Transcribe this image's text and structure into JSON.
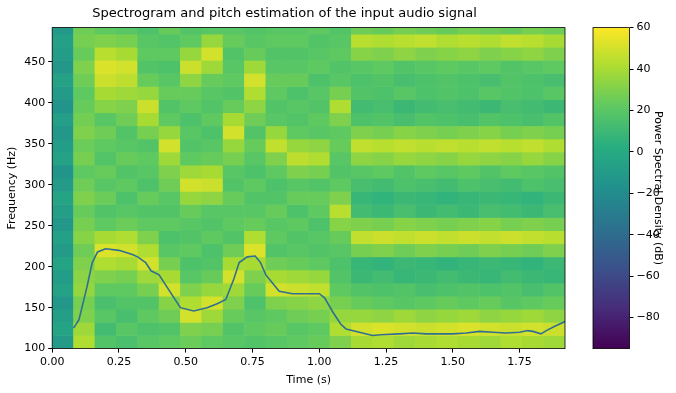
{
  "chart_data": {
    "type": "heatmap",
    "title": "Spectrogram and pitch estimation of the input audio signal",
    "x_label": "Time (s)",
    "y_label": "Frequency (Hz)",
    "grid": false,
    "xlim": [
      0,
      1.92
    ],
    "xticks": [
      {
        "value": 0,
        "label": "0.00"
      },
      {
        "value": 0.25,
        "label": "0.25"
      },
      {
        "value": 0.5,
        "label": "0.50"
      },
      {
        "value": 0.75,
        "label": "0.75"
      },
      {
        "value": 1,
        "label": "1.00"
      },
      {
        "value": 1.25,
        "label": "1.25"
      },
      {
        "value": 1.5,
        "label": "1.50"
      },
      {
        "value": 1.75,
        "label": "1.75"
      }
    ],
    "ylim": [
      100,
      492
    ],
    "yticks": [
      100,
      150,
      200,
      250,
      300,
      350,
      400,
      450
    ],
    "time_edges": [
      0,
      0.08,
      0.16,
      0.24,
      0.32,
      0.4,
      0.48,
      0.56,
      0.64,
      0.72,
      0.8,
      0.88,
      0.96,
      1.04,
      1.12,
      1.2,
      1.28,
      1.36,
      1.44,
      1.52,
      1.6,
      1.68,
      1.76,
      1.84,
      1.92
    ],
    "freq_edges": [
      100,
      116,
      132,
      148,
      164,
      180,
      196,
      212,
      228,
      244,
      260,
      276,
      292,
      308,
      324,
      340,
      356,
      372,
      388,
      404,
      420,
      436,
      452,
      468,
      484,
      500
    ],
    "cells": [
      [
        -10,
        -5,
        -8,
        -12,
        -6,
        -9,
        -4,
        -10,
        -7,
        -12,
        -8,
        -5,
        -10,
        -14,
        -6,
        -9,
        -12,
        -8,
        -15,
        -10,
        -6,
        -12,
        -9,
        -7,
        -11
      ],
      [
        42,
        38,
        30,
        28,
        35,
        33,
        30,
        26,
        32,
        28,
        24,
        30,
        26,
        22,
        28,
        25,
        30,
        27,
        24,
        22,
        26,
        30,
        24,
        28,
        26
      ],
      [
        18,
        12,
        20,
        15,
        22,
        30,
        42,
        52,
        40,
        22,
        18,
        25,
        20,
        24,
        18,
        22,
        26,
        20,
        32,
        40,
        48,
        52,
        44,
        30,
        22
      ],
      [
        15,
        20,
        14,
        18,
        22,
        28,
        40,
        50,
        42,
        25,
        20,
        16,
        22,
        18,
        24,
        20,
        18,
        26,
        30,
        38,
        45,
        50,
        40,
        28,
        20
      ],
      [
        20,
        16,
        22,
        18,
        28,
        38,
        50,
        42,
        30,
        22,
        18,
        24,
        16,
        20,
        22,
        18,
        28,
        40,
        48,
        36,
        24,
        18,
        22,
        20,
        16
      ],
      [
        22,
        18,
        26,
        32,
        50,
        40,
        28,
        20,
        16,
        22,
        18,
        20,
        26,
        30,
        38,
        50,
        36,
        22,
        18,
        24,
        20,
        16,
        22,
        18,
        24
      ],
      [
        25,
        30,
        50,
        42,
        30,
        20,
        16,
        22,
        18,
        20,
        24,
        36,
        50,
        38,
        22,
        18,
        20,
        16,
        22,
        24,
        34,
        48,
        36,
        22,
        18
      ],
      [
        22,
        28,
        38,
        50,
        36,
        24,
        18,
        16,
        22,
        18,
        20,
        34,
        48,
        40,
        24,
        20,
        16,
        22,
        18,
        20,
        24,
        38,
        50,
        36,
        20
      ],
      [
        20,
        18,
        24,
        30,
        38,
        50,
        40,
        26,
        18,
        22,
        20,
        24,
        18,
        20,
        28,
        36,
        50,
        40,
        24,
        18,
        22,
        20,
        18,
        24,
        20
      ],
      [
        18,
        22,
        20,
        16,
        24,
        30,
        40,
        52,
        42,
        24,
        20,
        18,
        22,
        16,
        20,
        24,
        18,
        26,
        34,
        42,
        50,
        38,
        24,
        20,
        18
      ],
      [
        20,
        24,
        22,
        30,
        50,
        40,
        26,
        18,
        22,
        20,
        24,
        18,
        16,
        22,
        30,
        46,
        36,
        20,
        18,
        22,
        24,
        20,
        18,
        22,
        20
      ],
      [
        22,
        20,
        26,
        32,
        48,
        38,
        24,
        20,
        18,
        22,
        16,
        24,
        20,
        30,
        45,
        36,
        22,
        18,
        20,
        16,
        24,
        20,
        18,
        22,
        20
      ],
      [
        24,
        22,
        28,
        34,
        46,
        36,
        22,
        18,
        20,
        16,
        22,
        24,
        18,
        28,
        42,
        34,
        20,
        22,
        18,
        20,
        16,
        22,
        20,
        18,
        22
      ],
      [
        30,
        42,
        36,
        28,
        22,
        18,
        16,
        20,
        24,
        32,
        44,
        30,
        22,
        18,
        20,
        24,
        22,
        30,
        42,
        28,
        20,
        18,
        22,
        20,
        18
      ],
      [
        40,
        50,
        36,
        24,
        18,
        10,
        8,
        28,
        46,
        30,
        12,
        8,
        14,
        20,
        34,
        46,
        30,
        16,
        12,
        18,
        16,
        20,
        32,
        44,
        26
      ],
      [
        42,
        52,
        34,
        22,
        16,
        12,
        6,
        30,
        48,
        28,
        10,
        6,
        12,
        22,
        32,
        44,
        28,
        18,
        14,
        16,
        18,
        22,
        30,
        42,
        24
      ],
      [
        38,
        50,
        38,
        20,
        18,
        8,
        10,
        26,
        46,
        32,
        14,
        10,
        16,
        18,
        36,
        46,
        32,
        14,
        10,
        20,
        14,
        18,
        34,
        44,
        28
      ],
      [
        40,
        48,
        34,
        22,
        14,
        10,
        8,
        30,
        48,
        30,
        10,
        8,
        14,
        22,
        34,
        44,
        30,
        18,
        12,
        16,
        16,
        20,
        30,
        46,
        26
      ],
      [
        42,
        50,
        36,
        24,
        16,
        12,
        6,
        28,
        46,
        28,
        12,
        6,
        12,
        20,
        32,
        46,
        28,
        16,
        14,
        18,
        18,
        22,
        32,
        42,
        24
      ],
      [
        40,
        52,
        38,
        22,
        18,
        10,
        8,
        26,
        48,
        30,
        10,
        8,
        16,
        22,
        36,
        44,
        30,
        14,
        12,
        16,
        16,
        20,
        34,
        44,
        28
      ],
      [
        38,
        50,
        34,
        24,
        16,
        8,
        10,
        30,
        46,
        32,
        14,
        10,
        14,
        18,
        34,
        46,
        32,
        18,
        10,
        20,
        14,
        22,
        30,
        42,
        26
      ],
      [
        42,
        48,
        36,
        20,
        18,
        12,
        8,
        28,
        48,
        28,
        12,
        8,
        12,
        22,
        32,
        44,
        28,
        16,
        14,
        18,
        18,
        18,
        32,
        46,
        24
      ],
      [
        40,
        50,
        38,
        22,
        14,
        10,
        6,
        26,
        46,
        30,
        10,
        6,
        16,
        20,
        36,
        46,
        30,
        14,
        12,
        16,
        16,
        20,
        34,
        44,
        28
      ],
      [
        38,
        48,
        34,
        24,
        18,
        8,
        10,
        30,
        44,
        28,
        14,
        10,
        14,
        18,
        32,
        42,
        28,
        18,
        10,
        20,
        14,
        22,
        30,
        40,
        26
      ]
    ],
    "colorbar": {
      "label": "Power Spectral Density (dB)",
      "lim": [
        -95,
        60
      ],
      "ticks": [
        {
          "value": -80,
          "label": "−80"
        },
        {
          "value": -60,
          "label": "−60"
        },
        {
          "value": -40,
          "label": "−40"
        },
        {
          "value": -20,
          "label": "−20"
        },
        0,
        20,
        40,
        60
      ]
    },
    "x": [
      0.08,
      0.1,
      0.13,
      0.15,
      0.17,
      0.2,
      0.25,
      0.3,
      0.32,
      0.35,
      0.37,
      0.4,
      0.43,
      0.45,
      0.48,
      0.53,
      0.58,
      0.62,
      0.65,
      0.68,
      0.7,
      0.73,
      0.76,
      0.78,
      0.8,
      0.83,
      0.85,
      0.9,
      0.95,
      1.0,
      1.02,
      1.05,
      1.08,
      1.1,
      1.15,
      1.2,
      1.23,
      1.3,
      1.35,
      1.4,
      1.5,
      1.55,
      1.6,
      1.65,
      1.7,
      1.75,
      1.78,
      1.8,
      1.83,
      1.85,
      1.88,
      1.92
    ],
    "series": [
      {
        "type": "line",
        "color": "#2f6f92",
        "values": [
          125,
          135,
          175,
          205,
          218,
          222,
          220,
          215,
          212,
          205,
          195,
          190,
          175,
          165,
          150,
          146,
          150,
          155,
          160,
          185,
          205,
          212,
          213,
          205,
          190,
          178,
          170,
          167,
          167,
          167,
          162,
          145,
          130,
          124,
          120,
          116,
          117,
          118,
          119,
          118,
          118,
          119,
          121,
          120,
          119,
          120,
          122,
          121,
          118,
          122,
          127,
          133
        ]
      }
    ]
  }
}
